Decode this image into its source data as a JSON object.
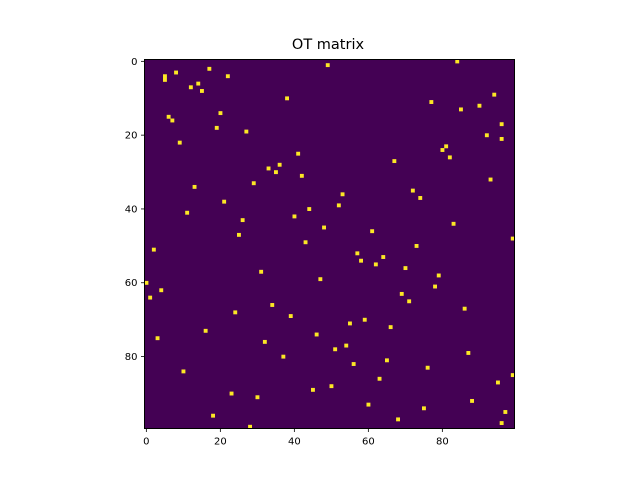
{
  "chart_data": {
    "type": "heatmap",
    "title": "OT matrix",
    "xlabel": "",
    "ylabel": "",
    "rows": 100,
    "cols": 100,
    "xlim": [
      0,
      100
    ],
    "ylim": [
      0,
      100
    ],
    "y_inverted": true,
    "x_ticks": [
      0,
      20,
      40,
      60,
      80
    ],
    "y_ticks": [
      0,
      20,
      40,
      60,
      80
    ],
    "x_tick_labels": [
      "0",
      "20",
      "40",
      "60",
      "80"
    ],
    "y_tick_labels": [
      "0",
      "20",
      "40",
      "60",
      "80"
    ],
    "grid": false,
    "colormap": "viridis",
    "background_value": 0,
    "background_color": "#440154",
    "highlight_color": "#fde725",
    "nonzero_cells": [
      [
        0,
        84
      ],
      [
        1,
        49
      ],
      [
        2,
        17
      ],
      [
        3,
        8
      ],
      [
        4,
        5
      ],
      [
        4,
        22
      ],
      [
        5,
        5
      ],
      [
        6,
        14
      ],
      [
        7,
        12
      ],
      [
        8,
        15
      ],
      [
        9,
        94
      ],
      [
        10,
        38
      ],
      [
        11,
        77
      ],
      [
        12,
        90
      ],
      [
        13,
        85
      ],
      [
        14,
        20
      ],
      [
        15,
        6
      ],
      [
        16,
        7
      ],
      [
        17,
        96
      ],
      [
        18,
        19
      ],
      [
        19,
        27
      ],
      [
        20,
        92
      ],
      [
        21,
        96
      ],
      [
        22,
        9
      ],
      [
        23,
        81
      ],
      [
        24,
        80
      ],
      [
        25,
        41
      ],
      [
        26,
        82
      ],
      [
        27,
        67
      ],
      [
        28,
        36
      ],
      [
        29,
        33
      ],
      [
        30,
        35
      ],
      [
        31,
        42
      ],
      [
        32,
        93
      ],
      [
        33,
        29
      ],
      [
        34,
        13
      ],
      [
        35,
        72
      ],
      [
        36,
        53
      ],
      [
        37,
        74
      ],
      [
        38,
        21
      ],
      [
        39,
        52
      ],
      [
        40,
        44
      ],
      [
        41,
        11
      ],
      [
        42,
        40
      ],
      [
        43,
        26
      ],
      [
        44,
        83
      ],
      [
        45,
        48
      ],
      [
        46,
        61
      ],
      [
        47,
        25
      ],
      [
        48,
        99
      ],
      [
        49,
        43
      ],
      [
        50,
        73
      ],
      [
        51,
        2
      ],
      [
        52,
        57
      ],
      [
        53,
        64
      ],
      [
        54,
        58
      ],
      [
        55,
        62
      ],
      [
        56,
        70
      ],
      [
        57,
        31
      ],
      [
        58,
        79
      ],
      [
        59,
        47
      ],
      [
        60,
        0
      ],
      [
        61,
        78
      ],
      [
        62,
        4
      ],
      [
        63,
        69
      ],
      [
        64,
        1
      ],
      [
        65,
        71
      ],
      [
        66,
        34
      ],
      [
        67,
        86
      ],
      [
        68,
        24
      ],
      [
        69,
        39
      ],
      [
        70,
        59
      ],
      [
        71,
        55
      ],
      [
        72,
        66
      ],
      [
        73,
        16
      ],
      [
        74,
        46
      ],
      [
        75,
        3
      ],
      [
        76,
        32
      ],
      [
        77,
        54
      ],
      [
        78,
        51
      ],
      [
        79,
        87
      ],
      [
        80,
        37
      ],
      [
        81,
        65
      ],
      [
        82,
        56
      ],
      [
        83,
        76
      ],
      [
        84,
        10
      ],
      [
        85,
        99
      ],
      [
        86,
        63
      ],
      [
        87,
        95
      ],
      [
        88,
        50
      ],
      [
        89,
        45
      ],
      [
        90,
        23
      ],
      [
        91,
        30
      ],
      [
        92,
        88
      ],
      [
        93,
        60
      ],
      [
        94,
        75
      ],
      [
        95,
        97
      ],
      [
        96,
        18
      ],
      [
        97,
        68
      ],
      [
        98,
        96
      ],
      [
        99,
        28
      ]
    ]
  }
}
